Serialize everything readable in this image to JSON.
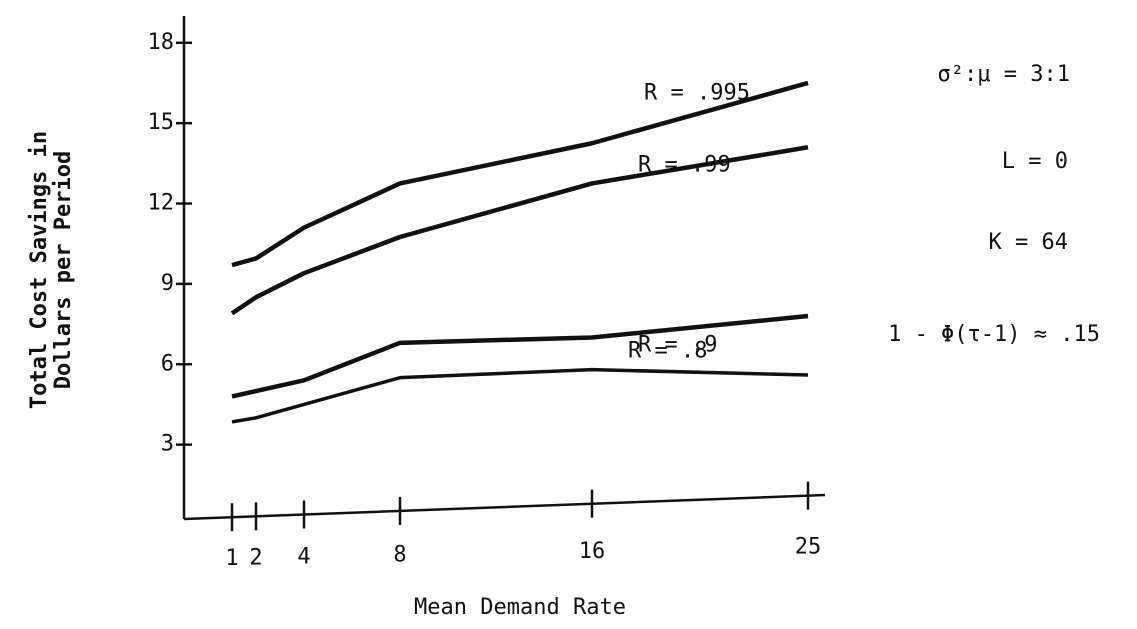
{
  "chart_data": {
    "type": "line",
    "xlabel": "Mean Demand Rate",
    "ylabel": [
      "Total Cost Savings in",
      "Dollars per Period"
    ],
    "x": [
      1,
      2,
      4,
      8,
      16,
      25
    ],
    "series": [
      {
        "name": "R = .995",
        "color": "#111111",
        "values": [
          9.7,
          9.95,
          11.1,
          12.75,
          14.25,
          16.5
        ]
      },
      {
        "name": "R = .99",
        "color": "#111111",
        "values": [
          7.9,
          8.5,
          9.4,
          10.75,
          12.75,
          14.1
        ]
      },
      {
        "name": "R = .9",
        "color": "#111111",
        "values": [
          4.8,
          5.0,
          5.4,
          6.8,
          7.0,
          7.8
        ]
      },
      {
        "name": "R = .8",
        "color": "#111111",
        "values": [
          3.85,
          4.0,
          4.5,
          5.5,
          5.8,
          5.6
        ]
      }
    ],
    "xlim": [
      -1,
      25.5
    ],
    "ylim": [
      0,
      19
    ],
    "xticks": [
      1,
      2,
      4,
      8,
      16,
      25
    ],
    "yticks": [
      3,
      6,
      9,
      12,
      15,
      18
    ],
    "annotations": [
      "σ²:μ = 3:1",
      "L =  0",
      "K =  64",
      "1 - Φ(τ-1) ≈ .15"
    ]
  }
}
